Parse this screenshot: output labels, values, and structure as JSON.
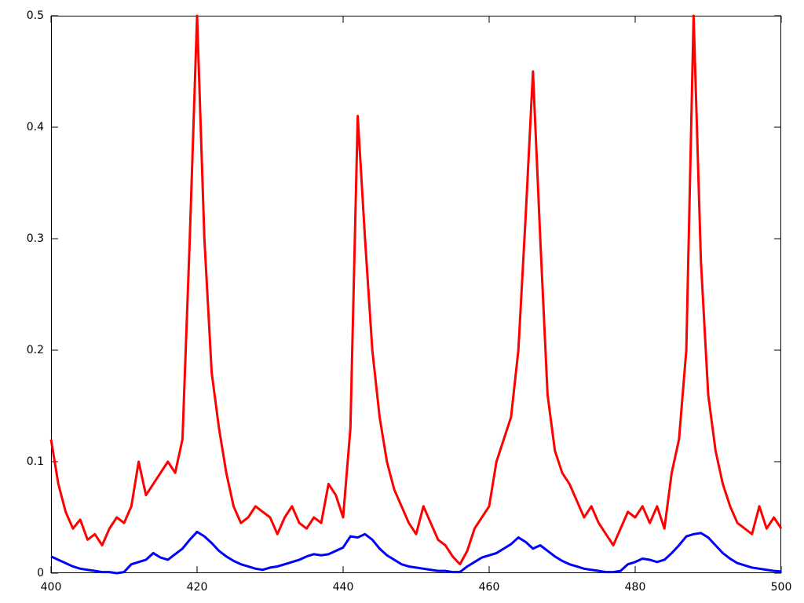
{
  "chart_data": {
    "type": "line",
    "x": [
      400,
      401,
      402,
      403,
      404,
      405,
      406,
      407,
      408,
      409,
      410,
      411,
      412,
      413,
      414,
      415,
      416,
      417,
      418,
      419,
      420,
      421,
      422,
      423,
      424,
      425,
      426,
      427,
      428,
      429,
      430,
      431,
      432,
      433,
      434,
      435,
      436,
      437,
      438,
      439,
      440,
      441,
      442,
      443,
      444,
      445,
      446,
      447,
      448,
      449,
      450,
      451,
      452,
      453,
      454,
      455,
      456,
      457,
      458,
      459,
      460,
      461,
      462,
      463,
      464,
      465,
      466,
      467,
      468,
      469,
      470,
      471,
      472,
      473,
      474,
      475,
      476,
      477,
      478,
      479,
      480,
      481,
      482,
      483,
      484,
      485,
      486,
      487,
      488,
      489,
      490,
      491,
      492,
      493,
      494,
      495,
      496,
      497,
      498,
      499,
      500
    ],
    "series": [
      {
        "color": "#ff0000",
        "values": [
          0.12,
          0.08,
          0.055,
          0.04,
          0.048,
          0.03,
          0.035,
          0.025,
          0.04,
          0.05,
          0.045,
          0.06,
          0.1,
          0.07,
          0.08,
          0.09,
          0.1,
          0.09,
          0.12,
          0.3,
          0.5,
          0.3,
          0.18,
          0.13,
          0.09,
          0.06,
          0.045,
          0.05,
          0.06,
          0.055,
          0.05,
          0.035,
          0.05,
          0.06,
          0.045,
          0.04,
          0.05,
          0.045,
          0.08,
          0.07,
          0.05,
          0.13,
          0.41,
          0.3,
          0.2,
          0.14,
          0.1,
          0.075,
          0.06,
          0.045,
          0.035,
          0.06,
          0.045,
          0.03,
          0.025,
          0.015,
          0.008,
          0.02,
          0.04,
          0.05,
          0.06,
          0.1,
          0.12,
          0.14,
          0.2,
          0.32,
          0.45,
          0.3,
          0.16,
          0.11,
          0.09,
          0.08,
          0.065,
          0.05,
          0.06,
          0.045,
          0.035,
          0.025,
          0.04,
          0.055,
          0.05,
          0.06,
          0.045,
          0.06,
          0.04,
          0.09,
          0.12,
          0.2,
          0.5,
          0.28,
          0.16,
          0.11,
          0.08,
          0.06,
          0.045,
          0.04,
          0.035,
          0.06,
          0.04,
          0.05,
          0.04
        ]
      },
      {
        "color": "#0000ff",
        "values": [
          0.015,
          0.012,
          0.009,
          0.006,
          0.004,
          0.003,
          0.002,
          0.001,
          0.001,
          0,
          0.001,
          0.008,
          0.01,
          0.012,
          0.018,
          0.014,
          0.012,
          0.017,
          0.022,
          0.03,
          0.037,
          0.033,
          0.027,
          0.02,
          0.015,
          0.011,
          0.008,
          0.006,
          0.004,
          0.003,
          0.005,
          0.006,
          0.008,
          0.01,
          0.012,
          0.015,
          0.017,
          0.016,
          0.017,
          0.02,
          0.023,
          0.033,
          0.032,
          0.035,
          0.03,
          0.022,
          0.016,
          0.012,
          0.008,
          0.006,
          0.005,
          0.004,
          0.003,
          0.002,
          0.002,
          0.001,
          0.001,
          0.006,
          0.01,
          0.014,
          0.016,
          0.018,
          0.022,
          0.026,
          0.032,
          0.028,
          0.022,
          0.025,
          0.02,
          0.015,
          0.011,
          0.008,
          0.006,
          0.004,
          0.003,
          0.002,
          0.001,
          0.001,
          0.002,
          0.008,
          0.01,
          0.013,
          0.012,
          0.01,
          0.012,
          0.018,
          0.025,
          0.033,
          0.035,
          0.036,
          0.032,
          0.025,
          0.018,
          0.013,
          0.009,
          0.007,
          0.005,
          0.004,
          0.003,
          0.002,
          0.0015
        ]
      }
    ],
    "xlim": [
      400,
      500
    ],
    "xticks": [
      400,
      420,
      440,
      460,
      480,
      500
    ],
    "ylim": [
      0,
      0.5
    ],
    "yticks": [
      0,
      0.1,
      0.2,
      0.3,
      0.4,
      0.5
    ]
  }
}
